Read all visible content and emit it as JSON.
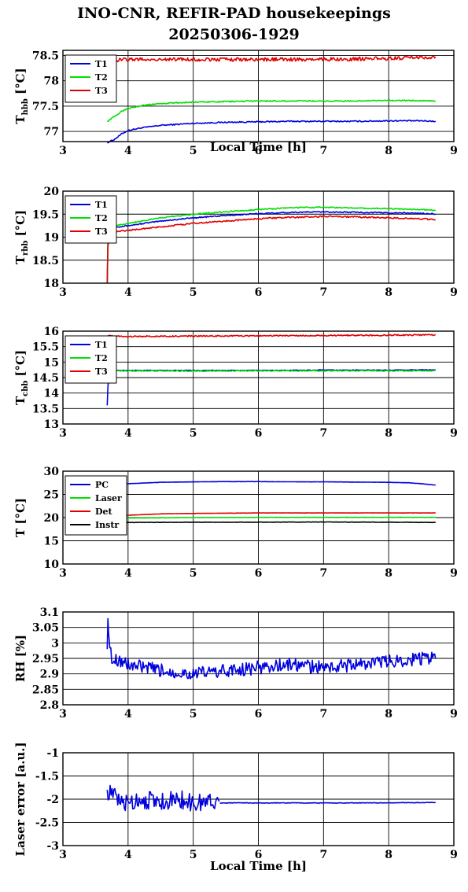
{
  "title": "INO-CNR, REFIR-PAD housekeepings",
  "subtitle": "20250306-1929",
  "chart_data": [
    {
      "type": "line",
      "xlabel": "Local Time [h]",
      "ylabel": "T_hbb [°C]",
      "ylabel_main": "T",
      "ylabel_sub": "hbb",
      "ylabel_unit": " [°C]",
      "xlim": [
        3,
        9
      ],
      "ylim": [
        76.8,
        78.6
      ],
      "xticks": [
        "3",
        "4",
        "5",
        "6",
        "7",
        "8",
        "9"
      ],
      "yticks": [
        77,
        77.5,
        78,
        78.5
      ],
      "ytick_labels": [
        "77",
        "77.5",
        "78",
        "78.5"
      ],
      "grid": true,
      "legend_position": "top-left",
      "series": [
        {
          "name": "T1",
          "color": "#0000e0",
          "noise": 0.012,
          "x": [
            3.68,
            3.8,
            3.9,
            4.0,
            4.2,
            4.5,
            5.0,
            5.5,
            6.0,
            6.5,
            7.0,
            7.5,
            8.0,
            8.5,
            8.72
          ],
          "y": [
            76.78,
            76.85,
            76.95,
            77.02,
            77.07,
            77.12,
            77.16,
            77.18,
            77.19,
            77.2,
            77.2,
            77.2,
            77.21,
            77.21,
            77.2
          ]
        },
        {
          "name": "T2",
          "color": "#00e000",
          "noise": 0.012,
          "x": [
            3.68,
            3.8,
            3.9,
            4.0,
            4.2,
            4.5,
            5.0,
            5.5,
            6.0,
            6.5,
            7.0,
            7.5,
            8.0,
            8.5,
            8.72
          ],
          "y": [
            77.2,
            77.3,
            77.4,
            77.46,
            77.51,
            77.55,
            77.58,
            77.59,
            77.6,
            77.6,
            77.6,
            77.6,
            77.61,
            77.61,
            77.6
          ]
        },
        {
          "name": "T3",
          "color": "#e00000",
          "noise": 0.035,
          "x": [
            3.68,
            4.0,
            5.0,
            6.0,
            7.0,
            8.0,
            8.72
          ],
          "y": [
            78.4,
            78.42,
            78.42,
            78.42,
            78.42,
            78.44,
            78.47
          ]
        }
      ]
    },
    {
      "type": "line",
      "xlabel": "",
      "ylabel": "T_rbb [°C]",
      "ylabel_main": "T",
      "ylabel_sub": "rbb",
      "ylabel_unit": " [°C]",
      "xlim": [
        3,
        9
      ],
      "ylim": [
        18,
        20
      ],
      "xticks": [
        "3",
        "4",
        "5",
        "6",
        "7",
        "8",
        "9"
      ],
      "yticks": [
        18,
        18.5,
        19,
        19.5,
        20
      ],
      "ytick_labels": [
        "18",
        "18.5",
        "19",
        "19.5",
        "20"
      ],
      "grid": true,
      "legend_position": "top-left",
      "series": [
        {
          "name": "T1",
          "color": "#0000e0",
          "noise": 0.012,
          "x": [
            3.68,
            3.69,
            3.72,
            3.8,
            4.0,
            4.5,
            5.0,
            5.5,
            6.0,
            6.5,
            7.0,
            7.5,
            8.0,
            8.5,
            8.72
          ],
          "y": [
            18.0,
            18.9,
            19.2,
            19.22,
            19.25,
            19.35,
            19.42,
            19.47,
            19.51,
            19.54,
            19.55,
            19.54,
            19.53,
            19.52,
            19.5
          ]
        },
        {
          "name": "T2",
          "color": "#00e000",
          "noise": 0.012,
          "x": [
            3.68,
            3.69,
            3.72,
            3.8,
            4.0,
            4.5,
            5.0,
            5.5,
            6.0,
            6.5,
            7.0,
            7.5,
            8.0,
            8.5,
            8.72
          ],
          "y": [
            18.0,
            19.0,
            19.2,
            19.25,
            19.3,
            19.42,
            19.5,
            19.55,
            19.6,
            19.64,
            19.65,
            19.63,
            19.62,
            19.6,
            19.58
          ]
        },
        {
          "name": "T3",
          "color": "#e00000",
          "noise": 0.015,
          "x": [
            3.68,
            3.69,
            3.72,
            3.8,
            4.0,
            4.5,
            5.0,
            5.5,
            6.0,
            6.5,
            7.0,
            7.5,
            8.0,
            8.5,
            8.72
          ],
          "y": [
            18.0,
            18.8,
            19.15,
            19.12,
            19.15,
            19.22,
            19.3,
            19.35,
            19.4,
            19.43,
            19.45,
            19.44,
            19.42,
            19.4,
            19.38
          ]
        }
      ]
    },
    {
      "type": "line",
      "xlabel": "",
      "ylabel": "T_cbb [°C]",
      "ylabel_main": "T",
      "ylabel_sub": "cbb",
      "ylabel_unit": " [°C]",
      "xlim": [
        3,
        9
      ],
      "ylim": [
        13,
        16
      ],
      "xticks": [
        "3",
        "4",
        "5",
        "6",
        "7",
        "8",
        "9"
      ],
      "yticks": [
        13,
        13.5,
        14,
        14.5,
        15,
        15.5,
        16
      ],
      "ytick_labels": [
        "13",
        "13.5",
        "14",
        "14.5",
        "15",
        "15.5",
        "16"
      ],
      "grid": true,
      "legend_position": "top-left",
      "series": [
        {
          "name": "T1",
          "color": "#0000e0",
          "noise": 0.012,
          "x": [
            3.68,
            3.69,
            3.71,
            3.75,
            4.0,
            5.0,
            6.0,
            7.0,
            8.0,
            8.72
          ],
          "y": [
            13.6,
            14.2,
            14.7,
            14.73,
            14.73,
            14.73,
            14.73,
            14.74,
            14.74,
            14.75
          ]
        },
        {
          "name": "T2",
          "color": "#00e000",
          "noise": 0.015,
          "x": [
            3.68,
            3.69,
            3.71,
            3.75,
            4.0,
            5.0,
            6.0,
            7.0,
            8.0,
            8.72
          ],
          "y": [
            14.5,
            14.65,
            14.72,
            14.72,
            14.72,
            14.71,
            14.72,
            14.72,
            14.72,
            14.72
          ]
        },
        {
          "name": "T3",
          "color": "#e00000",
          "noise": 0.02,
          "x": [
            3.68,
            4.0,
            5.0,
            6.0,
            7.0,
            8.0,
            8.72
          ],
          "y": [
            15.85,
            15.83,
            15.84,
            15.85,
            15.86,
            15.87,
            15.88
          ]
        }
      ]
    },
    {
      "type": "line",
      "xlabel": "",
      "ylabel": "T [°C]",
      "ylabel_main": "T [°C]",
      "ylabel_sub": "",
      "ylabel_unit": "",
      "xlim": [
        3,
        9
      ],
      "ylim": [
        10,
        30
      ],
      "xticks": [
        "3",
        "4",
        "5",
        "6",
        "7",
        "8",
        "9"
      ],
      "yticks": [
        10,
        15,
        20,
        25,
        30
      ],
      "ytick_labels": [
        "10",
        "15",
        "20",
        "25",
        "30"
      ],
      "grid": true,
      "legend_position": "top-left",
      "series": [
        {
          "name": "PC",
          "color": "#0000e0",
          "noise": 0.02,
          "x": [
            3.68,
            4.0,
            4.5,
            5.0,
            5.5,
            6.0,
            6.5,
            7.0,
            7.5,
            8.0,
            8.3,
            8.5,
            8.72
          ],
          "y": [
            27.0,
            27.3,
            27.6,
            27.7,
            27.75,
            27.75,
            27.7,
            27.7,
            27.65,
            27.6,
            27.5,
            27.3,
            27.0
          ]
        },
        {
          "name": "Laser",
          "color": "#00e000",
          "noise": 0.02,
          "x": [
            3.68,
            4.0,
            5.0,
            6.0,
            7.0,
            8.0,
            8.72
          ],
          "y": [
            19.8,
            19.9,
            20.0,
            20.05,
            20.05,
            20.05,
            20.05
          ]
        },
        {
          "name": "Det",
          "color": "#e00000",
          "noise": 0.02,
          "x": [
            3.68,
            4.0,
            4.5,
            5.0,
            6.0,
            7.0,
            8.0,
            8.72
          ],
          "y": [
            20.2,
            20.5,
            20.8,
            20.9,
            21.0,
            21.0,
            21.0,
            21.0
          ]
        },
        {
          "name": "Instr",
          "color": "#000000",
          "noise": 0.04,
          "x": [
            3.68,
            4.0,
            5.0,
            6.0,
            7.0,
            8.0,
            8.72
          ],
          "y": [
            18.9,
            18.95,
            19.0,
            19.0,
            19.05,
            19.0,
            18.95
          ]
        }
      ]
    },
    {
      "type": "line",
      "xlabel": "",
      "ylabel": "RH [%]",
      "ylabel_main": "RH [%]",
      "ylabel_sub": "",
      "ylabel_unit": "",
      "xlim": [
        3,
        9
      ],
      "ylim": [
        2.8,
        3.1
      ],
      "xticks": [
        "3",
        "4",
        "5",
        "6",
        "7",
        "8",
        "9"
      ],
      "yticks": [
        2.8,
        2.85,
        2.9,
        2.95,
        3,
        3.05,
        3.1
      ],
      "ytick_labels": [
        "2.8",
        "2.85",
        "2.9",
        "2.95",
        "3",
        "3.05",
        "3.1"
      ],
      "grid": true,
      "legend_position": "none",
      "series": [
        {
          "color": "#0000e0",
          "noise": 0.022,
          "x": [
            3.68,
            3.69,
            3.7,
            3.72,
            3.75,
            3.8,
            4.0,
            4.5,
            5.0,
            5.5,
            6.0,
            6.5,
            7.0,
            7.5,
            8.0,
            8.5,
            8.72
          ],
          "y": [
            2.98,
            3.1,
            3.04,
            2.98,
            2.95,
            2.95,
            2.93,
            2.91,
            2.9,
            2.91,
            2.92,
            2.93,
            2.92,
            2.93,
            2.94,
            2.95,
            2.95
          ]
        }
      ]
    },
    {
      "type": "line",
      "xlabel": "Local Time [h]",
      "ylabel": "Laser error [a.u.]",
      "ylabel_main": "Laser error [a.u.]",
      "ylabel_sub": "",
      "ylabel_unit": "",
      "xlim": [
        3,
        9
      ],
      "ylim": [
        -3,
        -1
      ],
      "xticks": [
        "3",
        "4",
        "5",
        "6",
        "7",
        "8",
        "9"
      ],
      "yticks": [
        -3,
        -2.5,
        -2,
        -1.5,
        -1
      ],
      "ytick_labels": [
        "-3",
        "-2.5",
        "-2",
        "-1.5",
        "-1"
      ],
      "grid": true,
      "legend_position": "none",
      "series": [
        {
          "color": "#0000e0",
          "noise": 0.2,
          "x": [
            3.68,
            3.9,
            4.2,
            4.5,
            4.8,
            5.0,
            5.2,
            5.4
          ],
          "y": [
            -1.8,
            -2.1,
            -2.0,
            -2.05,
            -2.0,
            -2.1,
            -2.05,
            -2.05
          ]
        },
        {
          "color": "#0000e0",
          "noise": 0.006,
          "x": [
            5.41,
            6.0,
            7.0,
            8.0,
            8.72
          ],
          "y": [
            -2.08,
            -2.08,
            -2.08,
            -2.08,
            -2.07
          ]
        }
      ]
    }
  ]
}
